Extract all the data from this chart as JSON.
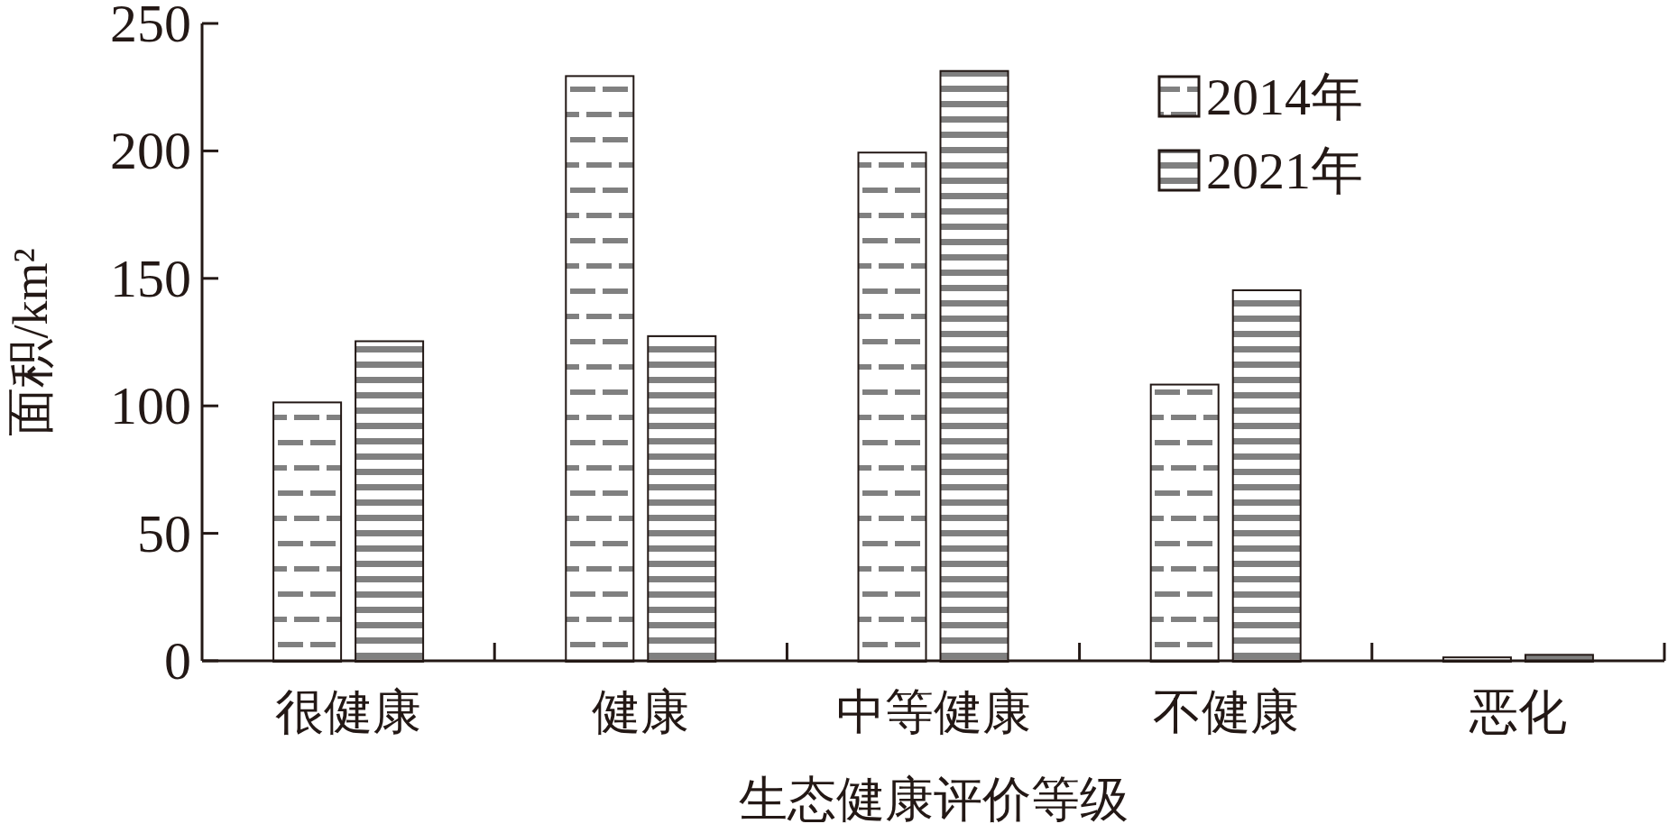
{
  "chart_data": {
    "type": "bar",
    "xlabel": "生态健康评价等级",
    "ylabel": "面积/km²",
    "categories": [
      "很健康",
      "健康",
      "中等健康",
      "不健康",
      "恶化"
    ],
    "series": [
      {
        "name": "2014年",
        "color": "#ffffff",
        "values": [
          101,
          229,
          199,
          108,
          1
        ]
      },
      {
        "name": "2021年",
        "color": "#808080",
        "values": [
          125,
          127,
          231,
          145,
          2
        ]
      }
    ],
    "ylim": [
      0,
      250
    ],
    "yticks": [
      0,
      50,
      100,
      150,
      200,
      250
    ],
    "grid": false,
    "legend": "top right"
  }
}
